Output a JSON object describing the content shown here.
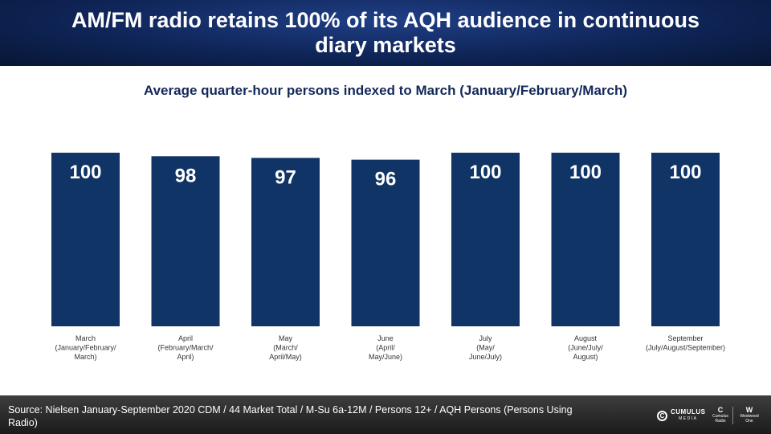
{
  "header": {
    "title": "AM/FM radio retains 100% of its AQH audience in continuous diary markets"
  },
  "footer": {
    "source": "Source: Nielsen January-September  2020 CDM / 44 Market Total / M-Su  6a-12M  / Persons 12+ / AQH Persons (Persons Using Radio)",
    "logo_main": "CUMULUS",
    "logo_main_sub": "MEDIA",
    "logo_a": "Cumulus Radio",
    "logo_b": "Westwood One"
  },
  "chart_data": {
    "type": "bar",
    "title": "Average quarter-hour persons indexed to March (January/February/March)",
    "categories": [
      [
        "March",
        "(January/February/",
        "March)"
      ],
      [
        "April",
        "(February/March/",
        "April)"
      ],
      [
        "May",
        "(March/",
        "April/May)"
      ],
      [
        "June",
        "(April/",
        "May/June)"
      ],
      [
        "July",
        "(May/",
        "June/July)"
      ],
      [
        "August",
        "(June/July/",
        "August)"
      ],
      [
        "September",
        "(July/August/September)"
      ]
    ],
    "values": [
      100,
      98,
      97,
      96,
      100,
      100,
      100
    ],
    "data_labels": [
      "100",
      "98",
      "97",
      "96",
      "100",
      "100",
      "100"
    ],
    "ylim": [
      0,
      100
    ],
    "grid": false,
    "legend": "none",
    "bar_color": "#0f3465",
    "label_color": "#ffffff",
    "category_label_color": "#333333"
  }
}
